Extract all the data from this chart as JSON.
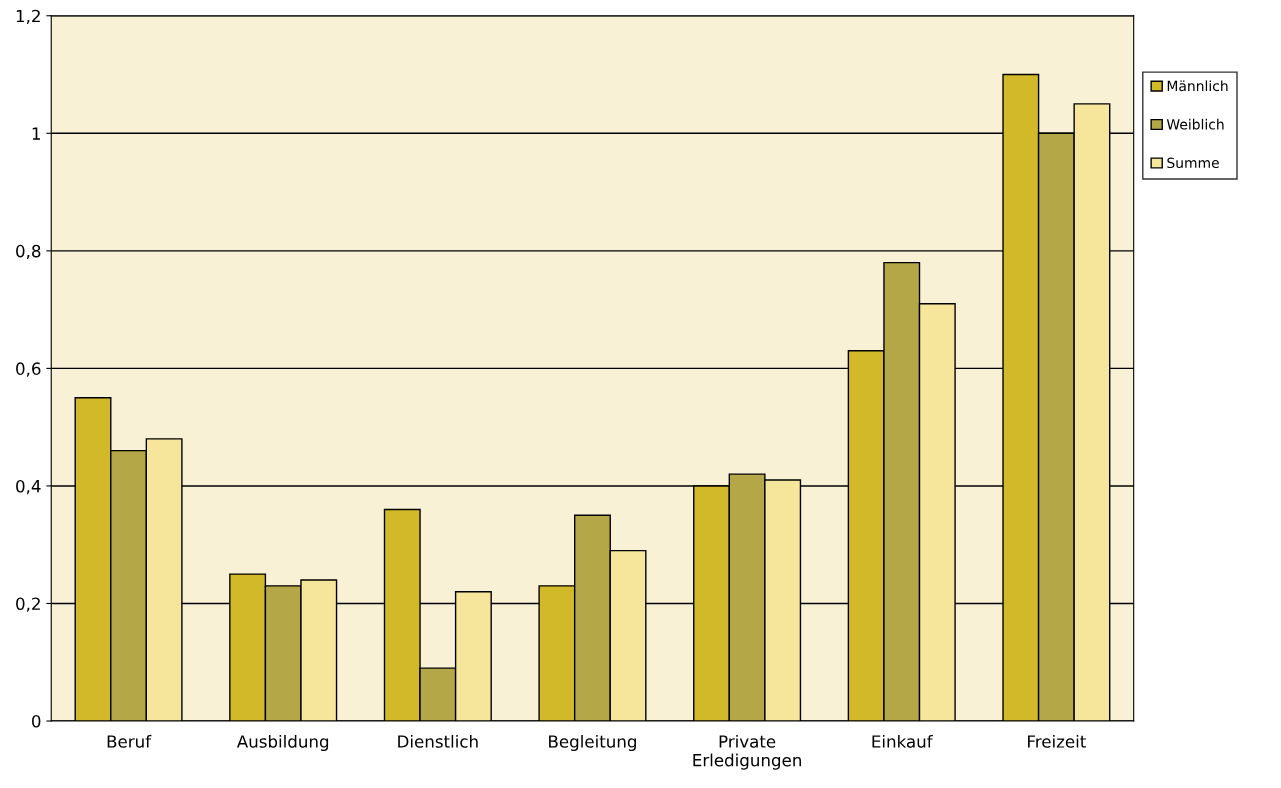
{
  "chart_data": {
    "type": "bar",
    "categories": [
      "Beruf",
      "Ausbildung",
      "Dienstlich",
      "Begleitung",
      "Private\nErledigungen",
      "Einkauf",
      "Freizeit"
    ],
    "series": [
      {
        "name": "Männlich",
        "color": "#d2b92a",
        "values": [
          0.55,
          0.25,
          0.36,
          0.23,
          0.4,
          0.63,
          1.1
        ]
      },
      {
        "name": "Weiblich",
        "color": "#b3a747",
        "values": [
          0.46,
          0.23,
          0.09,
          0.35,
          0.42,
          0.78,
          1.0
        ]
      },
      {
        "name": "Summe",
        "color": "#f6e69c",
        "values": [
          0.48,
          0.24,
          0.22,
          0.29,
          0.41,
          0.71,
          1.05
        ]
      }
    ],
    "ylim": [
      0,
      1.2
    ],
    "yticks": [
      {
        "value": 0,
        "label": "0"
      },
      {
        "value": 0.2,
        "label": "0,2"
      },
      {
        "value": 0.4,
        "label": "0,4"
      },
      {
        "value": 0.6,
        "label": "0,6"
      },
      {
        "value": 0.8,
        "label": "0,8"
      },
      {
        "value": 1,
        "label": "1"
      },
      {
        "value": 1.2,
        "label": "1,2"
      }
    ],
    "grid": "y",
    "legend": "top right"
  }
}
